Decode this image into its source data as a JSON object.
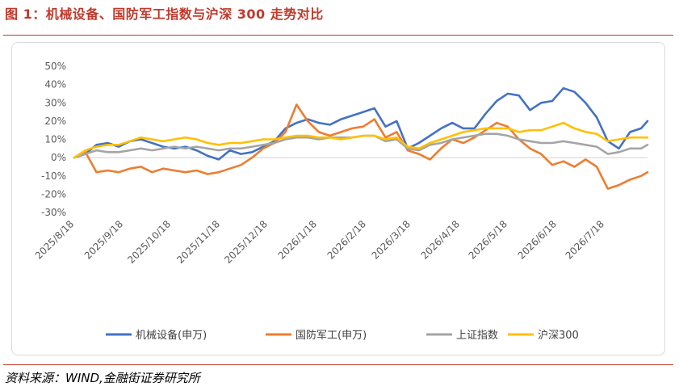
{
  "figure": {
    "title": "图 1：机械设备、国防军工指数与沪深 300 走势对比",
    "source": "资料来源：WIND,金融街证券研究所",
    "accent_color": "#c0392b"
  },
  "chart_data": {
    "type": "line",
    "title": "",
    "xlabel": "",
    "ylabel": "",
    "ylim": [
      -30,
      50
    ],
    "y_ticks": [
      "50%",
      "40%",
      "30%",
      "20%",
      "10%",
      "0%",
      "-10%",
      "-20%",
      "-30%"
    ],
    "x_range": [
      "2025-08-18",
      "2026-08-14"
    ],
    "x_ticks": [
      "2025/8/18",
      "2025/9/18",
      "2025/10/18",
      "2025/11/18",
      "2025/12/18",
      "2026/1/18",
      "2026/2/18",
      "2026/3/18",
      "2026/4/18",
      "2026/5/18",
      "2026/6/18",
      "2026/7/18"
    ],
    "grid": false,
    "legend_position": "bottom",
    "series": [
      {
        "name": "机械设备(申万)",
        "color": "#4472c4",
        "x": [
          "2025-08-18",
          "2025-08-25",
          "2025-09-01",
          "2025-09-08",
          "2025-09-15",
          "2025-09-22",
          "2025-09-29",
          "2025-10-06",
          "2025-10-13",
          "2025-10-20",
          "2025-10-27",
          "2025-11-03",
          "2025-11-10",
          "2025-11-17",
          "2025-11-24",
          "2025-12-01",
          "2025-12-08",
          "2025-12-15",
          "2025-12-22",
          "2025-12-29",
          "2026-01-05",
          "2026-01-12",
          "2026-01-19",
          "2026-01-26",
          "2026-02-02",
          "2026-02-09",
          "2026-02-16",
          "2026-02-23",
          "2026-03-02",
          "2026-03-09",
          "2026-03-16",
          "2026-03-23",
          "2026-03-30",
          "2026-04-06",
          "2026-04-13",
          "2026-04-20",
          "2026-04-27",
          "2026-05-04",
          "2026-05-11",
          "2026-05-18",
          "2026-05-25",
          "2026-06-01",
          "2026-06-08",
          "2026-06-15",
          "2026-06-22",
          "2026-06-29",
          "2026-07-06",
          "2026-07-13",
          "2026-07-20",
          "2026-07-27",
          "2026-08-03",
          "2026-08-10",
          "2026-08-14"
        ],
        "y": [
          0,
          2,
          7,
          8,
          6,
          9,
          10,
          8,
          6,
          5,
          6,
          4,
          1,
          -1,
          4,
          2,
          3,
          6,
          9,
          16,
          19,
          21,
          19,
          18,
          21,
          23,
          25,
          27,
          17,
          20,
          5,
          8,
          12,
          16,
          19,
          16,
          16,
          24,
          31,
          35,
          34,
          26,
          30,
          31,
          38,
          36,
          30,
          22,
          9,
          5,
          14,
          16,
          20
        ]
      },
      {
        "name": "国防军工(申万)",
        "color": "#ed7d31",
        "x": [
          "2025-08-18",
          "2025-08-25",
          "2025-09-01",
          "2025-09-08",
          "2025-09-15",
          "2025-09-22",
          "2025-09-29",
          "2025-10-06",
          "2025-10-13",
          "2025-10-20",
          "2025-10-27",
          "2025-11-03",
          "2025-11-10",
          "2025-11-17",
          "2025-11-24",
          "2025-12-01",
          "2025-12-08",
          "2025-12-15",
          "2025-12-22",
          "2025-12-29",
          "2026-01-05",
          "2026-01-12",
          "2026-01-19",
          "2026-01-26",
          "2026-02-02",
          "2026-02-09",
          "2026-02-16",
          "2026-02-23",
          "2026-03-02",
          "2026-03-09",
          "2026-03-16",
          "2026-03-23",
          "2026-03-30",
          "2026-04-06",
          "2026-04-13",
          "2026-04-20",
          "2026-04-27",
          "2026-05-04",
          "2026-05-11",
          "2026-05-18",
          "2026-05-25",
          "2026-06-01",
          "2026-06-08",
          "2026-06-15",
          "2026-06-22",
          "2026-06-29",
          "2026-07-06",
          "2026-07-13",
          "2026-07-20",
          "2026-07-27",
          "2026-08-03",
          "2026-08-10",
          "2026-08-14"
        ],
        "y": [
          0,
          3,
          -8,
          -7,
          -8,
          -6,
          -5,
          -8,
          -6,
          -7,
          -8,
          -7,
          -9,
          -8,
          -6,
          -4,
          0,
          5,
          8,
          14,
          29,
          20,
          14,
          12,
          14,
          16,
          17,
          21,
          11,
          14,
          4,
          2,
          -1,
          5,
          10,
          8,
          11,
          15,
          19,
          17,
          10,
          5,
          2,
          -4,
          -2,
          -5,
          -1,
          -5,
          -17,
          -15,
          -12,
          -10,
          -8
        ]
      },
      {
        "name": "上证指数",
        "color": "#a5a5a5",
        "x": [
          "2025-08-18",
          "2025-08-25",
          "2025-09-01",
          "2025-09-08",
          "2025-09-15",
          "2025-09-22",
          "2025-09-29",
          "2025-10-06",
          "2025-10-13",
          "2025-10-20",
          "2025-10-27",
          "2025-11-03",
          "2025-11-10",
          "2025-11-17",
          "2025-11-24",
          "2025-12-01",
          "2025-12-08",
          "2025-12-15",
          "2025-12-22",
          "2025-12-29",
          "2026-01-05",
          "2026-01-12",
          "2026-01-19",
          "2026-01-26",
          "2026-02-02",
          "2026-02-09",
          "2026-02-16",
          "2026-02-23",
          "2026-03-02",
          "2026-03-09",
          "2026-03-16",
          "2026-03-23",
          "2026-03-30",
          "2026-04-06",
          "2026-04-13",
          "2026-04-20",
          "2026-04-27",
          "2026-05-04",
          "2026-05-11",
          "2026-05-18",
          "2026-05-25",
          "2026-06-01",
          "2026-06-08",
          "2026-06-15",
          "2026-06-22",
          "2026-06-29",
          "2026-07-06",
          "2026-07-13",
          "2026-07-20",
          "2026-07-27",
          "2026-08-03",
          "2026-08-10",
          "2026-08-14"
        ],
        "y": [
          0,
          2,
          4,
          3,
          3,
          4,
          5,
          4,
          5,
          6,
          5,
          6,
          5,
          4,
          5,
          5,
          6,
          7,
          8,
          10,
          11,
          11,
          10,
          11,
          11,
          11,
          12,
          12,
          9,
          10,
          5,
          4,
          7,
          8,
          10,
          11,
          12,
          13,
          13,
          12,
          10,
          9,
          8,
          8,
          9,
          8,
          7,
          6,
          2,
          3,
          5,
          5,
          7
        ]
      },
      {
        "name": "沪深300",
        "color": "#ffc000",
        "x": [
          "2025-08-18",
          "2025-08-25",
          "2025-09-01",
          "2025-09-08",
          "2025-09-15",
          "2025-09-22",
          "2025-09-29",
          "2025-10-06",
          "2025-10-13",
          "2025-10-20",
          "2025-10-27",
          "2025-11-03",
          "2025-11-10",
          "2025-11-17",
          "2025-11-24",
          "2025-12-01",
          "2025-12-08",
          "2025-12-15",
          "2025-12-22",
          "2025-12-29",
          "2026-01-05",
          "2026-01-12",
          "2026-01-19",
          "2026-01-26",
          "2026-02-02",
          "2026-02-09",
          "2026-02-16",
          "2026-02-23",
          "2026-03-02",
          "2026-03-09",
          "2026-03-16",
          "2026-03-23",
          "2026-03-30",
          "2026-04-06",
          "2026-04-13",
          "2026-04-20",
          "2026-04-27",
          "2026-05-04",
          "2026-05-11",
          "2026-05-18",
          "2026-05-25",
          "2026-06-01",
          "2026-06-08",
          "2026-06-15",
          "2026-06-22",
          "2026-06-29",
          "2026-07-06",
          "2026-07-13",
          "2026-07-20",
          "2026-07-27",
          "2026-08-03",
          "2026-08-10",
          "2026-08-14"
        ],
        "y": [
          0,
          4,
          6,
          7,
          7,
          9,
          11,
          10,
          9,
          10,
          11,
          10,
          8,
          7,
          8,
          8,
          9,
          10,
          10,
          11,
          12,
          12,
          11,
          11,
          10,
          11,
          12,
          12,
          10,
          11,
          6,
          5,
          8,
          10,
          12,
          14,
          15,
          16,
          16,
          16,
          14,
          15,
          15,
          17,
          19,
          16,
          14,
          13,
          9,
          10,
          11,
          11,
          11
        ]
      }
    ]
  }
}
